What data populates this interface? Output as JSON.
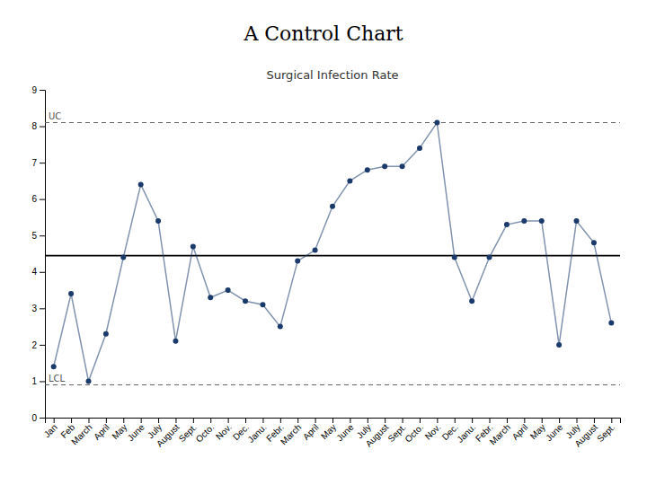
{
  "chart_data": {
    "type": "line",
    "title": "A Control Chart",
    "subtitle": "Surgical Infection Rate",
    "categories": [
      "Jan",
      "Feb",
      "March",
      "April",
      "May",
      "June",
      "July",
      "August",
      "Sept.",
      "Octo.",
      "Nov.",
      "Dec.",
      "Janu.",
      "Febr.",
      "March",
      "April",
      "May",
      "June",
      "July",
      "August",
      "Sept.",
      "Octo.",
      "Nov.",
      "Dec.",
      "Janu.",
      "Febr.",
      "March",
      "April",
      "May",
      "June",
      "July",
      "August",
      "Sept."
    ],
    "values": [
      1.4,
      3.4,
      1.0,
      2.3,
      4.4,
      6.4,
      5.4,
      2.1,
      4.7,
      3.3,
      3.5,
      3.2,
      3.1,
      2.5,
      4.3,
      4.6,
      5.8,
      6.5,
      6.8,
      6.9,
      6.9,
      7.4,
      8.1,
      4.4,
      3.2,
      4.4,
      5.3,
      5.4,
      5.4,
      2.0,
      5.4,
      4.8,
      2.6
    ],
    "color": "#1a3a6b",
    "marker": "circle",
    "control_lines": [
      {
        "label": "UC",
        "value": 8.1,
        "color": "#666666",
        "line_style": "dashed"
      },
      {
        "label": "LCL",
        "value": 0.9,
        "color": "#666666",
        "line_style": "dashed"
      },
      {
        "value": 4.45,
        "color": "#000000",
        "line_style": "solid"
      }
    ],
    "ylim": [
      0,
      9
    ],
    "yticks": [
      0,
      1,
      2,
      3,
      4,
      5,
      6,
      7,
      8,
      9
    ],
    "grid": false
  }
}
